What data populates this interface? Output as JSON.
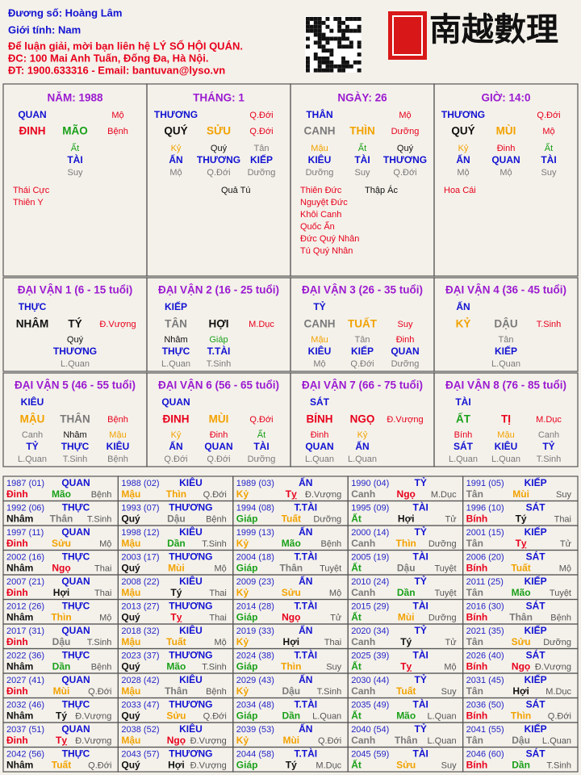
{
  "header": {
    "lines": [
      {
        "text": "Đương số: Hoàng Lâm",
        "c": "b"
      },
      {
        "text": "Giới tính:  Nam",
        "c": "b"
      },
      {
        "text": "Để luận giải, mời bạn liên hệ LÝ SỐ HỘI QUÁN.",
        "c": "r"
      },
      {
        "text": "ĐC: 100 Mai Anh Tuấn, Đống Đa, Hà Nội.",
        "c": "r"
      },
      {
        "text": "ĐT: 1900.633316 - Email: bantuvan@lyso.vn",
        "c": "r"
      }
    ],
    "logo": "南越數理"
  },
  "pillars": [
    {
      "title": "NĂM: 1988",
      "god": "QUAN",
      "god_stage": "Mộ",
      "stem": {
        "t": "ĐINH",
        "c": "r"
      },
      "branch": {
        "t": "MÃO",
        "c": "g"
      },
      "stage": "Bệnh",
      "hidden": [
        {
          "s": "Ất",
          "c": "g",
          "g": "TÀI",
          "st": "Suy"
        }
      ],
      "stars_left": [
        "Thái Cực",
        "Thiên Y"
      ]
    },
    {
      "title": "THÁNG: 1",
      "god": "THƯƠNG",
      "god_stage": "Q.Đới",
      "stem": {
        "t": "QUÝ",
        "c": "k"
      },
      "branch": {
        "t": "SỬU",
        "c": "o"
      },
      "stage": "Q.Đới",
      "hidden": [
        {
          "s": "Kỷ",
          "c": "o",
          "g": "ẤN",
          "st": "Mộ"
        },
        {
          "s": "Quý",
          "c": "k",
          "g": "THƯƠNG",
          "st": "Q.Đới"
        },
        {
          "s": "Tân",
          "c": "s",
          "g": "KIẾP",
          "st": "Dưỡng"
        }
      ],
      "stars_right": [
        "Quả Tú"
      ]
    },
    {
      "title": "NGÀY: 26",
      "god": "THÂN",
      "god_stage": "Mộ",
      "stem": {
        "t": "CANH",
        "c": "s"
      },
      "branch": {
        "t": "THÌN",
        "c": "o"
      },
      "stage": "Dưỡng",
      "hidden": [
        {
          "s": "Mậu",
          "c": "o",
          "g": "KIÊU",
          "st": "Dưỡng"
        },
        {
          "s": "Ất",
          "c": "g",
          "g": "TÀI",
          "st": "Suy"
        },
        {
          "s": "Quý",
          "c": "k",
          "g": "THƯƠNG",
          "st": "Q.Đới"
        }
      ],
      "stars_left": [
        "Thiên Đức",
        "Nguyệt Đức",
        "Khôi Canh",
        "Quốc Ấn",
        "Đức Quý Nhân",
        "Tú Quý Nhân"
      ],
      "stars_right": [
        "Thập Ác"
      ]
    },
    {
      "title": "GIỜ: 14:0",
      "god": "THƯƠNG",
      "god_stage": "Q.Đới",
      "stem": {
        "t": "QUÝ",
        "c": "k"
      },
      "branch": {
        "t": "MÙI",
        "c": "o"
      },
      "stage": "Mộ",
      "hidden": [
        {
          "s": "Kỷ",
          "c": "o",
          "g": "ẤN",
          "st": "Mộ"
        },
        {
          "s": "Đinh",
          "c": "r",
          "g": "QUAN",
          "st": "Mộ"
        },
        {
          "s": "Ất",
          "c": "g",
          "g": "TÀI",
          "st": "Suy"
        }
      ],
      "stars_left": [
        "Hoa Cái"
      ]
    }
  ],
  "dai_van": [
    {
      "title": "ĐẠI VẬN 1 (6 - 15 tuổi)",
      "god": "THỰC",
      "stem": {
        "t": "NHÂM",
        "c": "k"
      },
      "branch": {
        "t": "TÝ",
        "c": "k"
      },
      "stage": "Đ.Vượng",
      "hidden": [
        {
          "s": "Quý",
          "c": "k",
          "g": "THƯƠNG",
          "st": "L.Quan"
        }
      ]
    },
    {
      "title": "ĐẠI VẬN 2 (16 - 25 tuổi)",
      "god": "KIẾP",
      "stem": {
        "t": "TÂN",
        "c": "s"
      },
      "branch": {
        "t": "HỢI",
        "c": "k"
      },
      "stage": "M.Dục",
      "hidden": [
        {
          "s": "Nhâm",
          "c": "k",
          "g": "THỰC",
          "st": "L.Quan"
        },
        {
          "s": "Giáp",
          "c": "g",
          "g": "T.TÀI",
          "st": "T.Sinh"
        }
      ]
    },
    {
      "title": "ĐẠI VẬN 3 (26 - 35 tuổi)",
      "god": "TỶ",
      "stem": {
        "t": "CANH",
        "c": "s"
      },
      "branch": {
        "t": "TUẤT",
        "c": "o"
      },
      "stage": "Suy",
      "hidden": [
        {
          "s": "Mậu",
          "c": "o",
          "g": "KIÊU",
          "st": "Mộ"
        },
        {
          "s": "Tân",
          "c": "s",
          "g": "KIẾP",
          "st": "Q.Đới"
        },
        {
          "s": "Đinh",
          "c": "r",
          "g": "QUAN",
          "st": "Dưỡng"
        }
      ]
    },
    {
      "title": "ĐẠI VẬN 4 (36 - 45 tuổi)",
      "god": "ẤN",
      "stem": {
        "t": "KỶ",
        "c": "o"
      },
      "branch": {
        "t": "DẬU",
        "c": "s"
      },
      "stage": "T.Sinh",
      "hidden": [
        {
          "s": "Tân",
          "c": "s",
          "g": "KIẾP",
          "st": "L.Quan"
        }
      ]
    },
    {
      "title": "ĐẠI VẬN 5 (46 - 55 tuổi)",
      "god": "KIÊU",
      "stem": {
        "t": "MẬU",
        "c": "o"
      },
      "branch": {
        "t": "THÂN",
        "c": "s"
      },
      "stage": "Bệnh",
      "hidden": [
        {
          "s": "Canh",
          "c": "s",
          "g": "TỶ",
          "st": "L.Quan"
        },
        {
          "s": "Nhâm",
          "c": "k",
          "g": "THỰC",
          "st": "T.Sinh"
        },
        {
          "s": "Mậu",
          "c": "o",
          "g": "KIÊU",
          "st": "Bệnh"
        }
      ]
    },
    {
      "title": "ĐẠI VẬN 6 (56 - 65 tuổi)",
      "god": "QUAN",
      "stem": {
        "t": "ĐINH",
        "c": "r"
      },
      "branch": {
        "t": "MÙI",
        "c": "o"
      },
      "stage": "Q.Đới",
      "hidden": [
        {
          "s": "Kỷ",
          "c": "o",
          "g": "ẤN",
          "st": "Q.Đới"
        },
        {
          "s": "Đinh",
          "c": "r",
          "g": "QUAN",
          "st": "Q.Đới"
        },
        {
          "s": "Ất",
          "c": "g",
          "g": "TÀI",
          "st": "Dưỡng"
        }
      ]
    },
    {
      "title": "ĐẠI VẬN 7 (66 - 75 tuổi)",
      "god": "SÁT",
      "stem": {
        "t": "BÍNH",
        "c": "r"
      },
      "branch": {
        "t": "NGỌ",
        "c": "r"
      },
      "stage": "Đ.Vượng",
      "hidden": [
        {
          "s": "Đinh",
          "c": "r",
          "g": "QUAN",
          "st": "L.Quan"
        },
        {
          "s": "Kỷ",
          "c": "o",
          "g": "ẤN",
          "st": "L.Quan"
        }
      ]
    },
    {
      "title": "ĐẠI VẬN 8 (76 - 85 tuổi)",
      "god": "TÀI",
      "stem": {
        "t": "ẤT",
        "c": "g"
      },
      "branch": {
        "t": "TỊ",
        "c": "r"
      },
      "stage": "M.Dục",
      "hidden": [
        {
          "s": "Bính",
          "c": "r",
          "g": "SÁT",
          "st": "L.Quan"
        },
        {
          "s": "Mậu",
          "c": "o",
          "g": "KIÊU",
          "st": "L.Quan"
        },
        {
          "s": "Canh",
          "c": "s",
          "g": "TỶ",
          "st": "T.Sinh"
        }
      ]
    }
  ],
  "table": {
    "cells": [
      {
        "y": "1987 (01)",
        "g": "QUAN",
        "s": "Đinh",
        "sc": "r",
        "b": "Mão",
        "bc": "g",
        "st": "Bệnh"
      },
      {
        "y": "1988 (02)",
        "g": "KIÊU",
        "s": "Mậu",
        "sc": "o",
        "b": "Thìn",
        "bc": "o",
        "st": "Q.Đới"
      },
      {
        "y": "1989 (03)",
        "g": "ẤN",
        "s": "Kỷ",
        "sc": "o",
        "b": "Tỵ",
        "bc": "r",
        "st": "Đ.Vượng"
      },
      {
        "y": "1990 (04)",
        "g": "TỶ",
        "s": "Canh",
        "sc": "s",
        "b": "Ngọ",
        "bc": "r",
        "st": "M.Dục"
      },
      {
        "y": "1991 (05)",
        "g": "KIẾP",
        "s": "Tân",
        "sc": "s",
        "b": "Mùi",
        "bc": "o",
        "st": "Suy"
      },
      {
        "y": "1992 (06)",
        "g": "THỰC",
        "s": "Nhâm",
        "sc": "k",
        "b": "Thân",
        "bc": "s",
        "st": "T.Sinh"
      },
      {
        "y": "1993 (07)",
        "g": "THƯƠNG",
        "s": "Quý",
        "sc": "k",
        "b": "Dậu",
        "bc": "s",
        "st": "Bệnh"
      },
      {
        "y": "1994 (08)",
        "g": "T.TÀI",
        "s": "Giáp",
        "sc": "g",
        "b": "Tuất",
        "bc": "o",
        "st": "Dưỡng"
      },
      {
        "y": "1995 (09)",
        "g": "TÀI",
        "s": "Ất",
        "sc": "g",
        "b": "Hợi",
        "bc": "k",
        "st": "Tử"
      },
      {
        "y": "1996 (10)",
        "g": "SÁT",
        "s": "Bính",
        "sc": "r",
        "b": "Tý",
        "bc": "k",
        "st": "Thai"
      },
      {
        "y": "1997 (11)",
        "g": "QUAN",
        "s": "Đinh",
        "sc": "r",
        "b": "Sửu",
        "bc": "o",
        "st": "Mộ"
      },
      {
        "y": "1998 (12)",
        "g": "KIÊU",
        "s": "Mậu",
        "sc": "o",
        "b": "Dần",
        "bc": "g",
        "st": "T.Sinh"
      },
      {
        "y": "1999 (13)",
        "g": "ẤN",
        "s": "Kỷ",
        "sc": "o",
        "b": "Mão",
        "bc": "g",
        "st": "Bệnh"
      },
      {
        "y": "2000 (14)",
        "g": "TỶ",
        "s": "Canh",
        "sc": "s",
        "b": "Thìn",
        "bc": "o",
        "st": "Dưỡng"
      },
      {
        "y": "2001 (15)",
        "g": "KIẾP",
        "s": "Tân",
        "sc": "s",
        "b": "Tỵ",
        "bc": "r",
        "st": "Tử"
      },
      {
        "y": "2002 (16)",
        "g": "THỰC",
        "s": "Nhâm",
        "sc": "k",
        "b": "Ngọ",
        "bc": "r",
        "st": "Thai"
      },
      {
        "y": "2003 (17)",
        "g": "THƯƠNG",
        "s": "Quý",
        "sc": "k",
        "b": "Mùi",
        "bc": "o",
        "st": "Mộ"
      },
      {
        "y": "2004 (18)",
        "g": "T.TÀI",
        "s": "Giáp",
        "sc": "g",
        "b": "Thân",
        "bc": "s",
        "st": "Tuyệt"
      },
      {
        "y": "2005 (19)",
        "g": "TÀI",
        "s": "Ất",
        "sc": "g",
        "b": "Dậu",
        "bc": "s",
        "st": "Tuyệt"
      },
      {
        "y": "2006 (20)",
        "g": "SÁT",
        "s": "Bính",
        "sc": "r",
        "b": "Tuất",
        "bc": "o",
        "st": "Mộ"
      },
      {
        "y": "2007 (21)",
        "g": "QUAN",
        "s": "Đinh",
        "sc": "r",
        "b": "Hợi",
        "bc": "k",
        "st": "Thai"
      },
      {
        "y": "2008 (22)",
        "g": "KIÊU",
        "s": "Mậu",
        "sc": "o",
        "b": "Tý",
        "bc": "k",
        "st": "Thai"
      },
      {
        "y": "2009 (23)",
        "g": "ẤN",
        "s": "Kỷ",
        "sc": "o",
        "b": "Sửu",
        "bc": "o",
        "st": "Mộ"
      },
      {
        "y": "2010 (24)",
        "g": "TỶ",
        "s": "Canh",
        "sc": "s",
        "b": "Dần",
        "bc": "g",
        "st": "Tuyệt"
      },
      {
        "y": "2011 (25)",
        "g": "KIẾP",
        "s": "Tân",
        "sc": "s",
        "b": "Mão",
        "bc": "g",
        "st": "Tuyệt"
      },
      {
        "y": "2012 (26)",
        "g": "THỰC",
        "s": "Nhâm",
        "sc": "k",
        "b": "Thìn",
        "bc": "o",
        "st": "Mộ"
      },
      {
        "y": "2013 (27)",
        "g": "THƯƠNG",
        "s": "Quý",
        "sc": "k",
        "b": "Tỵ",
        "bc": "r",
        "st": "Thai"
      },
      {
        "y": "2014 (28)",
        "g": "T.TÀI",
        "s": "Giáp",
        "sc": "g",
        "b": "Ngọ",
        "bc": "r",
        "st": "Tử"
      },
      {
        "y": "2015 (29)",
        "g": "TÀI",
        "s": "Ất",
        "sc": "g",
        "b": "Mùi",
        "bc": "o",
        "st": "Dưỡng"
      },
      {
        "y": "2016 (30)",
        "g": "SÁT",
        "s": "Bính",
        "sc": "r",
        "b": "Thân",
        "bc": "s",
        "st": "Bệnh"
      },
      {
        "y": "2017 (31)",
        "g": "QUAN",
        "s": "Đinh",
        "sc": "r",
        "b": "Dậu",
        "bc": "s",
        "st": "T.Sinh"
      },
      {
        "y": "2018 (32)",
        "g": "KIÊU",
        "s": "Mậu",
        "sc": "o",
        "b": "Tuất",
        "bc": "o",
        "st": "Mộ"
      },
      {
        "y": "2019 (33)",
        "g": "ẤN",
        "s": "Kỷ",
        "sc": "o",
        "b": "Hợi",
        "bc": "k",
        "st": "Thai"
      },
      {
        "y": "2020 (34)",
        "g": "TỶ",
        "s": "Canh",
        "sc": "s",
        "b": "Tý",
        "bc": "k",
        "st": "Tử"
      },
      {
        "y": "2021 (35)",
        "g": "KIẾP",
        "s": "Tân",
        "sc": "s",
        "b": "Sửu",
        "bc": "o",
        "st": "Dưỡng"
      },
      {
        "y": "2022 (36)",
        "g": "THỰC",
        "s": "Nhâm",
        "sc": "k",
        "b": "Dần",
        "bc": "g",
        "st": "Bệnh"
      },
      {
        "y": "2023 (37)",
        "g": "THƯƠNG",
        "s": "Quý",
        "sc": "k",
        "b": "Mão",
        "bc": "g",
        "st": "T.Sinh"
      },
      {
        "y": "2024 (38)",
        "g": "T.TÀI",
        "s": "Giáp",
        "sc": "g",
        "b": "Thìn",
        "bc": "o",
        "st": "Suy"
      },
      {
        "y": "2025 (39)",
        "g": "TÀI",
        "s": "Ất",
        "sc": "g",
        "b": "Tỵ",
        "bc": "r",
        "st": "Mộ"
      },
      {
        "y": "2026 (40)",
        "g": "SÁT",
        "s": "Bính",
        "sc": "r",
        "b": "Ngọ",
        "bc": "r",
        "st": "Đ.Vượng"
      },
      {
        "y": "2027 (41)",
        "g": "QUAN",
        "s": "Đinh",
        "sc": "r",
        "b": "Mùi",
        "bc": "o",
        "st": "Q.Đới"
      },
      {
        "y": "2028 (42)",
        "g": "KIÊU",
        "s": "Mậu",
        "sc": "o",
        "b": "Thân",
        "bc": "s",
        "st": "Bệnh"
      },
      {
        "y": "2029 (43)",
        "g": "ẤN",
        "s": "Kỷ",
        "sc": "o",
        "b": "Dậu",
        "bc": "s",
        "st": "T.Sinh"
      },
      {
        "y": "2030 (44)",
        "g": "TỶ",
        "s": "Canh",
        "sc": "s",
        "b": "Tuất",
        "bc": "o",
        "st": "Suy"
      },
      {
        "y": "2031 (45)",
        "g": "KIẾP",
        "s": "Tân",
        "sc": "s",
        "b": "Hợi",
        "bc": "k",
        "st": "M.Dục"
      },
      {
        "y": "2032 (46)",
        "g": "THỰC",
        "s": "Nhâm",
        "sc": "k",
        "b": "Tý",
        "bc": "k",
        "st": "Đ.Vượng"
      },
      {
        "y": "2033 (47)",
        "g": "THƯƠNG",
        "s": "Quý",
        "sc": "k",
        "b": "Sửu",
        "bc": "o",
        "st": "Q.Đới"
      },
      {
        "y": "2034 (48)",
        "g": "T.TÀI",
        "s": "Giáp",
        "sc": "g",
        "b": "Dần",
        "bc": "g",
        "st": "L.Quan"
      },
      {
        "y": "2035 (49)",
        "g": "TÀI",
        "s": "Ất",
        "sc": "g",
        "b": "Mão",
        "bc": "g",
        "st": "L.Quan"
      },
      {
        "y": "2036 (50)",
        "g": "SÁT",
        "s": "Bính",
        "sc": "r",
        "b": "Thìn",
        "bc": "o",
        "st": "Q.Đới"
      },
      {
        "y": "2037 (51)",
        "g": "QUAN",
        "s": "Đinh",
        "sc": "r",
        "b": "Tỵ",
        "bc": "r",
        "st": "Đ.Vượng"
      },
      {
        "y": "2038 (52)",
        "g": "KIÊU",
        "s": "Mậu",
        "sc": "o",
        "b": "Ngọ",
        "bc": "r",
        "st": "Đ.Vượng"
      },
      {
        "y": "2039 (53)",
        "g": "ẤN",
        "s": "Kỷ",
        "sc": "o",
        "b": "Mùi",
        "bc": "o",
        "st": "Q.Đới"
      },
      {
        "y": "2040 (54)",
        "g": "TỶ",
        "s": "Canh",
        "sc": "s",
        "b": "Thân",
        "bc": "s",
        "st": "L.Quan"
      },
      {
        "y": "2041 (55)",
        "g": "KIẾP",
        "s": "Tân",
        "sc": "s",
        "b": "Dậu",
        "bc": "s",
        "st": "L.Quan"
      },
      {
        "y": "2042 (56)",
        "g": "THỰC",
        "s": "Nhâm",
        "sc": "k",
        "b": "Tuất",
        "bc": "o",
        "st": "Q.Đới"
      },
      {
        "y": "2043 (57)",
        "g": "THƯƠNG",
        "s": "Quý",
        "sc": "k",
        "b": "Hợi",
        "bc": "k",
        "st": "Đ.Vượng"
      },
      {
        "y": "2044 (58)",
        "g": "T.TÀI",
        "s": "Giáp",
        "sc": "g",
        "b": "Tý",
        "bc": "k",
        "st": "M.Dục"
      },
      {
        "y": "2045 (59)",
        "g": "TÀI",
        "s": "Ất",
        "sc": "g",
        "b": "Sửu",
        "bc": "o",
        "st": "Suy"
      },
      {
        "y": "2046 (60)",
        "g": "SÁT",
        "s": "Bính",
        "sc": "r",
        "b": "Dần",
        "bc": "g",
        "st": "T.Sinh"
      }
    ]
  }
}
